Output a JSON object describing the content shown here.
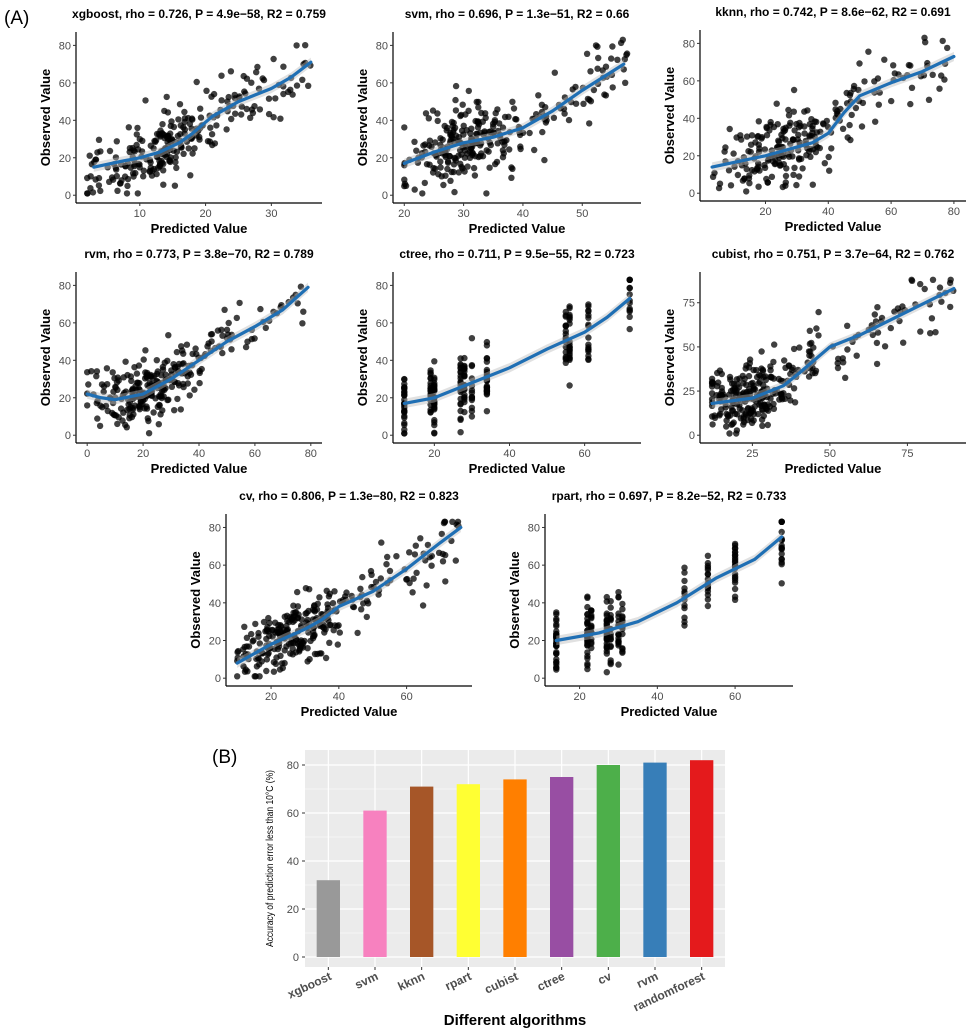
{
  "panel_a_label": "(A)",
  "panel_b_label": "(B)",
  "chart_data": [
    {
      "type": "scatter",
      "title": "xgboost, rho = 0.726, P = 4.9e−58, R2 = 0.759",
      "xlabel": "Predicted Value",
      "ylabel": "Observed Value",
      "xlim": [
        2,
        36
      ],
      "ylim": [
        0,
        83
      ],
      "xticks": [
        10,
        20,
        30
      ],
      "yticks": [
        0,
        20,
        40,
        60,
        80
      ],
      "smooth": [
        [
          3,
          15
        ],
        [
          7,
          18
        ],
        [
          10,
          20
        ],
        [
          13,
          23
        ],
        [
          16,
          28
        ],
        [
          18,
          33
        ],
        [
          21,
          42
        ],
        [
          25,
          50
        ],
        [
          30,
          57
        ],
        [
          33,
          63
        ],
        [
          36,
          71
        ]
      ],
      "points": {
        "n": 260,
        "noise": 9,
        "x_center": 13,
        "x_levels": []
      }
    },
    {
      "type": "scatter",
      "title": "svm, rho = 0.696, P = 1.3e−51, R2 = 0.66",
      "xlabel": "Predicted Value",
      "ylabel": "Observed Value",
      "xlim": [
        20,
        58
      ],
      "ylim": [
        0,
        83
      ],
      "xticks": [
        20,
        30,
        40,
        50
      ],
      "yticks": [
        0,
        20,
        40,
        60,
        80
      ],
      "smooth": [
        [
          20,
          17
        ],
        [
          25,
          23
        ],
        [
          30,
          28
        ],
        [
          35,
          31
        ],
        [
          40,
          36
        ],
        [
          45,
          45
        ],
        [
          50,
          56
        ],
        [
          54,
          64
        ],
        [
          57,
          70
        ]
      ],
      "points": {
        "n": 280,
        "noise": 10,
        "x_center": 29,
        "x_levels": []
      }
    },
    {
      "type": "scatter",
      "title": "kknn, rho = 0.742, P = 8.6e−62, R2 = 0.691",
      "xlabel": "Predicted Value",
      "ylabel": "Observed Value",
      "xlim": [
        3,
        80
      ],
      "ylim": [
        0,
        83
      ],
      "xticks": [
        20,
        40,
        60,
        80
      ],
      "yticks": [
        0,
        20,
        40,
        60,
        80
      ],
      "smooth": [
        [
          3,
          14
        ],
        [
          20,
          20
        ],
        [
          35,
          27
        ],
        [
          40,
          32
        ],
        [
          45,
          43
        ],
        [
          50,
          52
        ],
        [
          60,
          59
        ],
        [
          70,
          65
        ],
        [
          80,
          73
        ]
      ],
      "points": {
        "n": 240,
        "noise": 9,
        "x_center": 28,
        "x_levels": []
      }
    },
    {
      "type": "scatter",
      "title": "rvm, rho = 0.773, P = 3.8e−70, R2 = 0.789",
      "xlabel": "Predicted Value",
      "ylabel": "Observed Value",
      "xlim": [
        0,
        80
      ],
      "ylim": [
        0,
        83
      ],
      "xticks": [
        0,
        20,
        40,
        60,
        80
      ],
      "yticks": [
        0,
        20,
        40,
        60,
        80
      ],
      "smooth": [
        [
          0,
          22
        ],
        [
          5,
          20
        ],
        [
          10,
          19
        ],
        [
          20,
          22
        ],
        [
          30,
          30
        ],
        [
          40,
          40
        ],
        [
          50,
          50
        ],
        [
          60,
          58
        ],
        [
          70,
          67
        ],
        [
          79,
          79
        ]
      ],
      "points": {
        "n": 280,
        "noise": 8,
        "x_center": 24,
        "x_levels": []
      }
    },
    {
      "type": "scatter",
      "title": "ctree, rho = 0.711, P = 9.5e−55, R2 = 0.723",
      "xlabel": "Predicted Value",
      "ylabel": "Observed Value",
      "xlim": [
        12,
        72
      ],
      "ylim": [
        0,
        83
      ],
      "xticks": [
        20,
        40,
        60
      ],
      "yticks": [
        0,
        20,
        40,
        60,
        80
      ],
      "smooth": [
        [
          12,
          17
        ],
        [
          20,
          20
        ],
        [
          30,
          28
        ],
        [
          40,
          36
        ],
        [
          50,
          46
        ],
        [
          60,
          55
        ],
        [
          66,
          63
        ],
        [
          72,
          73
        ]
      ],
      "points": {
        "n": 230,
        "noise": 9,
        "x_center": 27,
        "x_levels": [
          12,
          19,
          20,
          27,
          28,
          30,
          34,
          55,
          56,
          61,
          72
        ]
      }
    },
    {
      "type": "scatter",
      "title": "cubist, rho = 0.751, P = 3.7e−64, R2 = 0.762",
      "xlabel": "Predicted Value",
      "ylabel": "Observed Value",
      "xlim": [
        12,
        90
      ],
      "ylim": [
        0,
        88
      ],
      "xticks": [
        25,
        50,
        75
      ],
      "yticks": [
        0,
        25,
        50,
        75
      ],
      "smooth": [
        [
          12,
          18
        ],
        [
          25,
          21
        ],
        [
          35,
          28
        ],
        [
          40,
          35
        ],
        [
          50,
          50
        ],
        [
          60,
          57
        ],
        [
          75,
          70
        ],
        [
          90,
          83
        ]
      ],
      "points": {
        "n": 300,
        "noise": 9,
        "x_center": 26,
        "x_levels": []
      }
    },
    {
      "type": "scatter",
      "title": "cv, rho = 0.806, P = 1.3e−80, R2 = 0.823",
      "xlabel": "Predicted Value",
      "ylabel": "Observed Value",
      "xlim": [
        10,
        76
      ],
      "ylim": [
        0,
        83
      ],
      "xticks": [
        20,
        40,
        60
      ],
      "yticks": [
        0,
        20,
        40,
        60,
        80
      ],
      "smooth": [
        [
          10,
          8
        ],
        [
          20,
          18
        ],
        [
          30,
          26
        ],
        [
          35,
          31
        ],
        [
          40,
          38
        ],
        [
          50,
          46
        ],
        [
          60,
          58
        ],
        [
          70,
          72
        ],
        [
          76,
          80
        ]
      ],
      "points": {
        "n": 300,
        "noise": 8,
        "x_center": 27,
        "x_levels": []
      }
    },
    {
      "type": "scatter",
      "title": "rpart, rho = 0.697, P = 8.2e−52, R2 = 0.733",
      "xlabel": "Predicted Value",
      "ylabel": "Observed Value",
      "xlim": [
        14,
        72
      ],
      "ylim": [
        0,
        83
      ],
      "xticks": [
        20,
        40,
        60
      ],
      "yticks": [
        0,
        20,
        40,
        60,
        80
      ],
      "smooth": [
        [
          14,
          20
        ],
        [
          25,
          24
        ],
        [
          35,
          30
        ],
        [
          45,
          40
        ],
        [
          55,
          53
        ],
        [
          65,
          63
        ],
        [
          72,
          75
        ]
      ],
      "points": {
        "n": 230,
        "noise": 9,
        "x_center": 25,
        "x_levels": [
          14,
          22,
          23,
          27,
          28,
          30,
          31,
          47,
          53,
          60,
          72
        ]
      }
    },
    {
      "type": "bar",
      "title": "",
      "xlabel": "Different algorithms",
      "ylabel": "Accuracy of prediction error less than 10°C (%)",
      "categories": [
        "xgboost",
        "svm",
        "kknn",
        "rpart",
        "cubist",
        "ctree",
        "cv",
        "rvm",
        "randomforest"
      ],
      "values": [
        32,
        61,
        71,
        72,
        74,
        75,
        80,
        81,
        82
      ],
      "colors": [
        "#999999",
        "#f781bf",
        "#a65628",
        "#ffff33",
        "#ff7f00",
        "#984ea3",
        "#4daf4a",
        "#377eb8",
        "#e41a1c"
      ],
      "ylim": [
        0,
        86
      ],
      "yticks": [
        0,
        20,
        40,
        60,
        80
      ],
      "grid": true
    }
  ]
}
